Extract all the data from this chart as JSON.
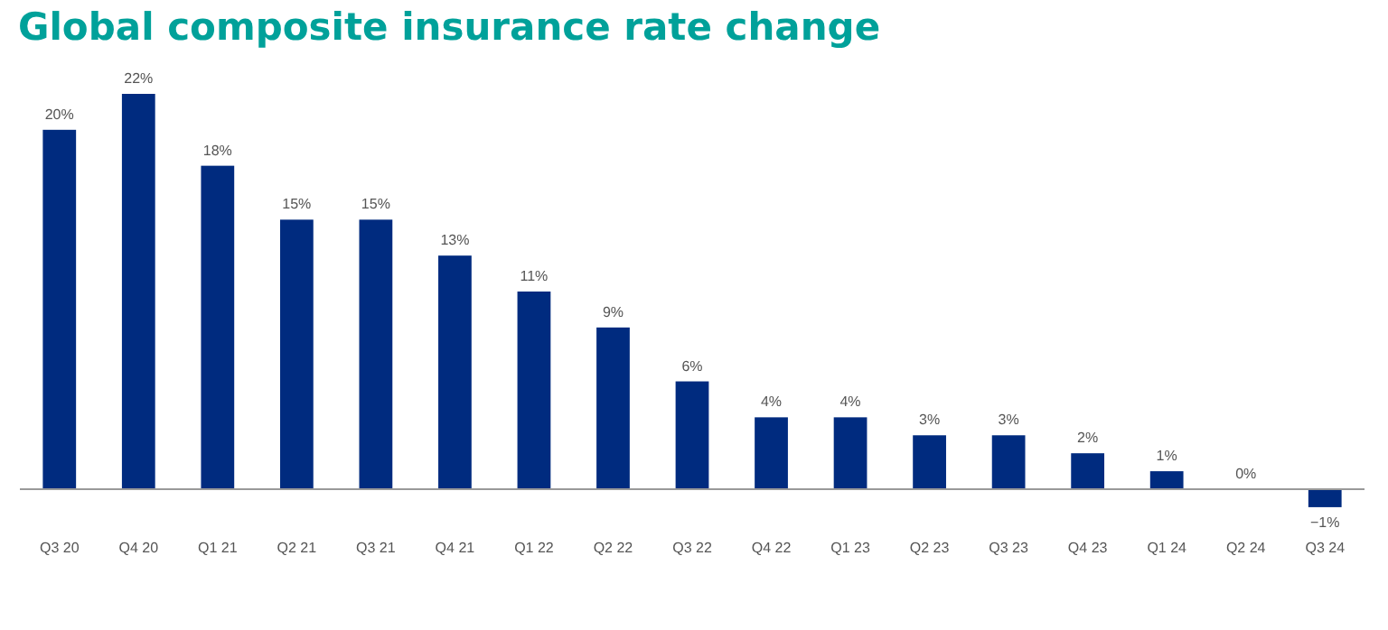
{
  "chart_data": {
    "type": "bar",
    "title": "Global composite insurance rate change",
    "categories": [
      "Q3 20",
      "Q4 20",
      "Q1 21",
      "Q2 21",
      "Q3 21",
      "Q4 21",
      "Q1 22",
      "Q2 22",
      "Q3 22",
      "Q4 22",
      "Q1 23",
      "Q2 23",
      "Q3 23",
      "Q4 23",
      "Q1 24",
      "Q2 24",
      "Q3 24"
    ],
    "values": [
      20,
      22,
      18,
      15,
      15,
      13,
      11,
      9,
      6,
      4,
      4,
      3,
      3,
      2,
      1,
      0,
      -1
    ],
    "value_labels": [
      "20%",
      "22%",
      "18%",
      "15%",
      "15%",
      "13%",
      "11%",
      "9%",
      "6%",
      "4%",
      "4%",
      "3%",
      "3%",
      "2%",
      "1%",
      "0%",
      "−1%"
    ],
    "color": "#002b7f"
  }
}
